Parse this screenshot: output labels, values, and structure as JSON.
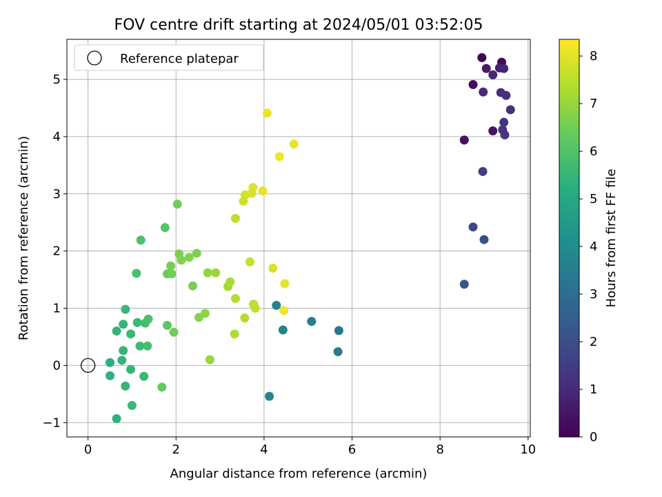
{
  "chart_data": {
    "type": "scatter",
    "title": "FOV centre drift starting at 2024/05/01 03:52:05",
    "xlabel": "Angular distance from reference (arcmin)",
    "ylabel": "Rotation from reference (arcmin)",
    "xlim": [
      -0.48,
      10.05
    ],
    "ylim": [
      -1.25,
      5.7
    ],
    "xticks": [
      0,
      2,
      4,
      6,
      8,
      10
    ],
    "yticks": [
      -1,
      0,
      1,
      2,
      3,
      4,
      5
    ],
    "grid": true,
    "legend": {
      "position": "top-left",
      "entries": [
        "Reference platepar"
      ]
    },
    "reference_point": {
      "x": 0,
      "y": 0,
      "marker": "open-circle"
    },
    "colorbar": {
      "label": "Hours from first FF file",
      "min": 0,
      "max": 8.35,
      "ticks": [
        0,
        1,
        2,
        3,
        4,
        5,
        6,
        7,
        8
      ],
      "colormap": "viridis"
    },
    "points": [
      {
        "x": 8.95,
        "y": 5.38,
        "c": 0.05
      },
      {
        "x": 9.4,
        "y": 5.3,
        "c": 0.15
      },
      {
        "x": 8.75,
        "y": 4.91,
        "c": 0.25
      },
      {
        "x": 8.55,
        "y": 3.94,
        "c": 0.35
      },
      {
        "x": 9.2,
        "y": 4.1,
        "c": 0.45
      },
      {
        "x": 9.05,
        "y": 5.19,
        "c": 0.6
      },
      {
        "x": 9.35,
        "y": 5.2,
        "c": 0.7
      },
      {
        "x": 9.45,
        "y": 5.19,
        "c": 0.8
      },
      {
        "x": 9.2,
        "y": 5.08,
        "c": 0.9
      },
      {
        "x": 8.98,
        "y": 4.78,
        "c": 1.0
      },
      {
        "x": 9.38,
        "y": 4.77,
        "c": 1.05
      },
      {
        "x": 9.5,
        "y": 4.72,
        "c": 1.1
      },
      {
        "x": 9.6,
        "y": 4.47,
        "c": 1.15
      },
      {
        "x": 9.45,
        "y": 4.25,
        "c": 1.2
      },
      {
        "x": 9.42,
        "y": 4.12,
        "c": 1.25
      },
      {
        "x": 9.47,
        "y": 4.03,
        "c": 1.3
      },
      {
        "x": 8.97,
        "y": 3.39,
        "c": 1.55
      },
      {
        "x": 8.75,
        "y": 2.42,
        "c": 1.8
      },
      {
        "x": 9.0,
        "y": 2.2,
        "c": 1.95
      },
      {
        "x": 8.55,
        "y": 1.42,
        "c": 2.15
      },
      {
        "x": 5.7,
        "y": 0.61,
        "c": 3.35
      },
      {
        "x": 5.68,
        "y": 0.24,
        "c": 3.45
      },
      {
        "x": 5.08,
        "y": 0.77,
        "c": 3.55
      },
      {
        "x": 4.28,
        "y": 1.05,
        "c": 3.65
      },
      {
        "x": 4.43,
        "y": 0.62,
        "c": 3.75
      },
      {
        "x": 4.12,
        "y": -0.54,
        "c": 3.85
      },
      {
        "x": 0.5,
        "y": 0.05,
        "c": 5.3
      },
      {
        "x": 0.5,
        "y": -0.18,
        "c": 5.35
      },
      {
        "x": 0.65,
        "y": -0.93,
        "c": 5.35
      },
      {
        "x": 0.65,
        "y": 0.6,
        "c": 5.4
      },
      {
        "x": 0.77,
        "y": 0.09,
        "c": 5.45
      },
      {
        "x": 0.8,
        "y": 0.26,
        "c": 5.5
      },
      {
        "x": 0.8,
        "y": 0.72,
        "c": 5.45
      },
      {
        "x": 0.85,
        "y": -0.36,
        "c": 5.5
      },
      {
        "x": 0.85,
        "y": 0.98,
        "c": 5.55
      },
      {
        "x": 0.97,
        "y": -0.07,
        "c": 5.5
      },
      {
        "x": 0.97,
        "y": 0.55,
        "c": 5.6
      },
      {
        "x": 1.0,
        "y": -0.7,
        "c": 5.55
      },
      {
        "x": 1.12,
        "y": 0.75,
        "c": 5.65
      },
      {
        "x": 1.18,
        "y": 0.34,
        "c": 5.7
      },
      {
        "x": 1.27,
        "y": -0.19,
        "c": 5.6
      },
      {
        "x": 1.3,
        "y": 0.74,
        "c": 5.75
      },
      {
        "x": 1.35,
        "y": 0.34,
        "c": 5.8
      },
      {
        "x": 1.37,
        "y": 0.81,
        "c": 5.9
      },
      {
        "x": 1.1,
        "y": 1.61,
        "c": 5.85
      },
      {
        "x": 1.2,
        "y": 2.19,
        "c": 5.95
      },
      {
        "x": 1.75,
        "y": 2.41,
        "c": 6.05
      },
      {
        "x": 1.68,
        "y": -0.38,
        "c": 6.3
      },
      {
        "x": 1.8,
        "y": 0.7,
        "c": 6.2
      },
      {
        "x": 1.95,
        "y": 0.58,
        "c": 6.5
      },
      {
        "x": 1.8,
        "y": 1.6,
        "c": 6.4
      },
      {
        "x": 1.9,
        "y": 1.6,
        "c": 6.5
      },
      {
        "x": 1.88,
        "y": 1.74,
        "c": 6.55
      },
      {
        "x": 2.03,
        "y": 2.82,
        "c": 6.5
      },
      {
        "x": 2.07,
        "y": 1.95,
        "c": 6.7
      },
      {
        "x": 2.12,
        "y": 1.84,
        "c": 6.75
      },
      {
        "x": 2.3,
        "y": 1.89,
        "c": 6.75
      },
      {
        "x": 2.38,
        "y": 1.39,
        "c": 6.6
      },
      {
        "x": 2.47,
        "y": 1.96,
        "c": 6.7
      },
      {
        "x": 2.52,
        "y": 0.84,
        "c": 6.8
      },
      {
        "x": 2.66,
        "y": 0.91,
        "c": 6.85
      },
      {
        "x": 2.72,
        "y": 1.62,
        "c": 6.95
      },
      {
        "x": 2.77,
        "y": 0.1,
        "c": 7.0
      },
      {
        "x": 2.9,
        "y": 1.62,
        "c": 7.05
      },
      {
        "x": 3.18,
        "y": 1.38,
        "c": 7.2
      },
      {
        "x": 3.23,
        "y": 1.46,
        "c": 7.25
      },
      {
        "x": 3.33,
        "y": 0.55,
        "c": 7.3
      },
      {
        "x": 3.35,
        "y": 1.17,
        "c": 7.4
      },
      {
        "x": 3.35,
        "y": 2.57,
        "c": 7.55
      },
      {
        "x": 3.53,
        "y": 2.87,
        "c": 7.7
      },
      {
        "x": 3.57,
        "y": 2.98,
        "c": 7.75
      },
      {
        "x": 3.56,
        "y": 0.83,
        "c": 7.4
      },
      {
        "x": 3.68,
        "y": 1.81,
        "c": 7.6
      },
      {
        "x": 3.72,
        "y": 3.01,
        "c": 7.85
      },
      {
        "x": 3.75,
        "y": 3.11,
        "c": 7.9
      },
      {
        "x": 3.76,
        "y": 1.07,
        "c": 7.5
      },
      {
        "x": 3.8,
        "y": 1.0,
        "c": 7.55
      },
      {
        "x": 3.97,
        "y": 3.05,
        "c": 8.05
      },
      {
        "x": 4.07,
        "y": 4.41,
        "c": 8.1
      },
      {
        "x": 4.2,
        "y": 1.7,
        "c": 7.85
      },
      {
        "x": 4.35,
        "y": 3.65,
        "c": 8.15
      },
      {
        "x": 4.45,
        "y": 0.96,
        "c": 8.2
      },
      {
        "x": 4.47,
        "y": 1.43,
        "c": 8.05
      },
      {
        "x": 4.68,
        "y": 3.87,
        "c": 8.1
      }
    ]
  }
}
